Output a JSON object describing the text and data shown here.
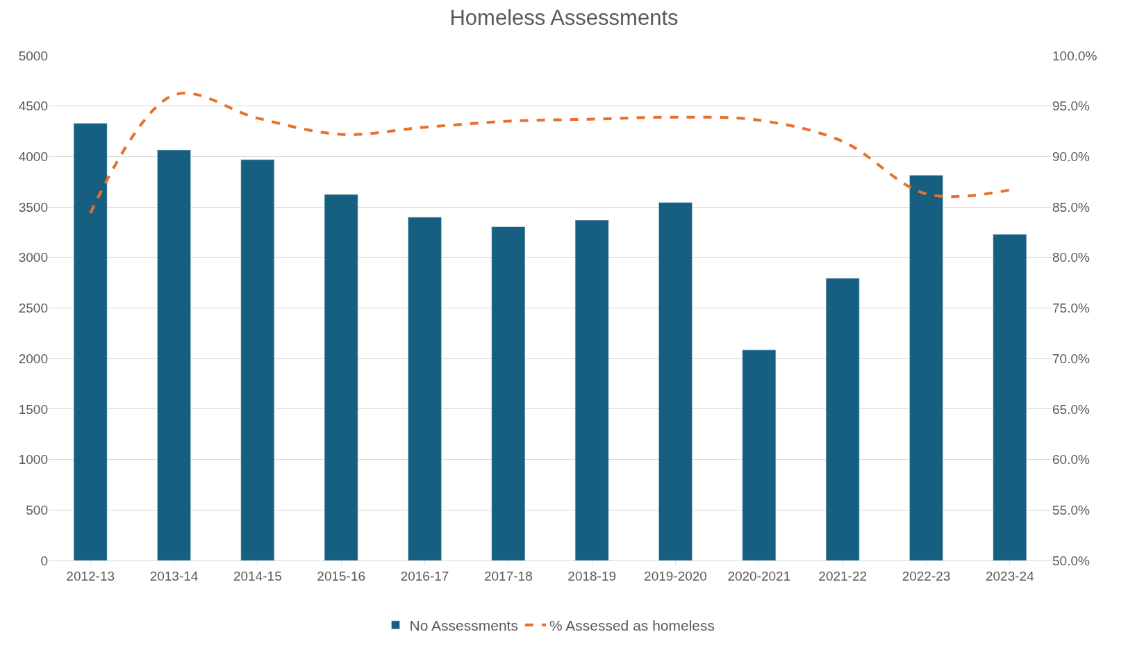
{
  "chart_data": {
    "type": "bar",
    "title": "Homeless Assessments",
    "categories": [
      "2012-13",
      "2013-14",
      "2014-15",
      "2015-16",
      "2016-17",
      "2017-18",
      "2018-19",
      "2019-2020",
      "2020-2021",
      "2021-22",
      "2022-23",
      "2023-24"
    ],
    "series": [
      {
        "name": "No Assessments",
        "color": "#175f80",
        "values": [
          4330,
          4065,
          3970,
          3625,
          3400,
          3305,
          3370,
          3545,
          2085,
          2795,
          3815,
          3230
        ]
      },
      {
        "name": "% Assessed as homeless",
        "type": "line",
        "axis": "y2",
        "line_style": "dashed",
        "color": "#e8702a",
        "values": [
          84.4,
          96.1,
          93.8,
          92.2,
          92.9,
          93.5,
          93.7,
          93.9,
          93.6,
          91.5,
          86.3,
          86.7
        ]
      }
    ],
    "ylim": [
      0,
      5000
    ],
    "yticks": [
      0,
      500,
      1000,
      1500,
      2000,
      2500,
      3000,
      3500,
      4000,
      4500,
      5000
    ],
    "y2lim": [
      50,
      100
    ],
    "y2ticks": [
      {
        "value": 50,
        "label": "50.0%"
      },
      {
        "value": 55,
        "label": "55.0%"
      },
      {
        "value": 60,
        "label": "60.0%"
      },
      {
        "value": 65,
        "label": "65.0%"
      },
      {
        "value": 70,
        "label": "70.0%"
      },
      {
        "value": 75,
        "label": "75.0%"
      },
      {
        "value": 80,
        "label": "80.0%"
      },
      {
        "value": 85,
        "label": "85.0%"
      },
      {
        "value": 90,
        "label": "90.0%"
      },
      {
        "value": 95,
        "label": "95.0%"
      },
      {
        "value": 100,
        "label": "100.0%"
      }
    ],
    "grid": "y",
    "legend": "bottom"
  }
}
